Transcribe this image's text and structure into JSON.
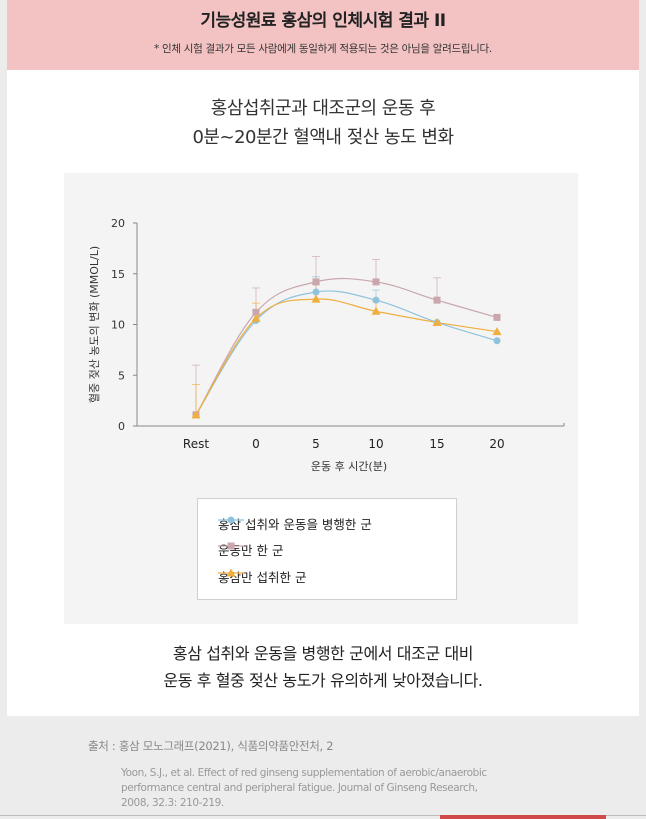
{
  "header": {
    "title": "기능성원료 홍삼의 인체시험 결과 II",
    "notice": "* 인체 시험 결과가 모든 사람에게 동일하게 적용되는 것은 아님을 알려드립니다."
  },
  "heading": {
    "line1": "홍삼섭취군과 대조군의 운동 후",
    "line2": "0분~20분간 혈액내 젖산 농도 변화"
  },
  "chart_data": {
    "type": "line",
    "categories": [
      "Rest",
      "0",
      "5",
      "10",
      "15",
      "20"
    ],
    "ylabel": "혈중 젖산 농도의 변화 (MMOL/L)",
    "xlabel": "운동 후 시간(분)",
    "ylim": [
      0,
      20
    ],
    "yticks": [
      0,
      5,
      10,
      15,
      20
    ],
    "grid": false,
    "legend_position": "bottom-center",
    "series": [
      {
        "name": "홍삼 섭취와 운동을 병행한 군",
        "color": "#8fc3dd",
        "marker": "circle",
        "values": [
          1.1,
          10.4,
          13.2,
          12.4,
          10.2,
          8.4
        ],
        "error": [
          0,
          1.0,
          1.5,
          1.0,
          0,
          0
        ]
      },
      {
        "name": "운동만 한 군",
        "color": "#c9a7ac",
        "marker": "square",
        "values": [
          1.1,
          11.2,
          14.2,
          14.2,
          12.4,
          10.7
        ],
        "error": [
          4.9,
          2.4,
          2.5,
          2.2,
          2.2,
          0
        ]
      },
      {
        "name": "홍삼만 섭취한 군",
        "color": "#f0ae3d",
        "marker": "triangle",
        "values": [
          1.1,
          10.6,
          12.5,
          11.3,
          10.2,
          9.3
        ],
        "error": [
          3.0,
          1.5,
          1.5,
          1.0,
          0,
          0
        ]
      }
    ]
  },
  "conclusion": {
    "line1": "홍삼 섭취와 운동을 병행한 군에서 대조군 대비",
    "line2": "운동 후 혈중 젖산 농도가 유의하게 낮아졌습니다."
  },
  "source": {
    "text": "출처 : 홍삼 모노그래프(2021), 식품의약품안전처, 2",
    "ref_line1": "Yoon, S.J., et al. Effect of red ginseng supplementation of aerobic/anaerobic",
    "ref_line2": "performance central and peripheral fatigue. Journal of Ginseng Research,",
    "ref_line3": "2008, 32.3: 210-219."
  }
}
